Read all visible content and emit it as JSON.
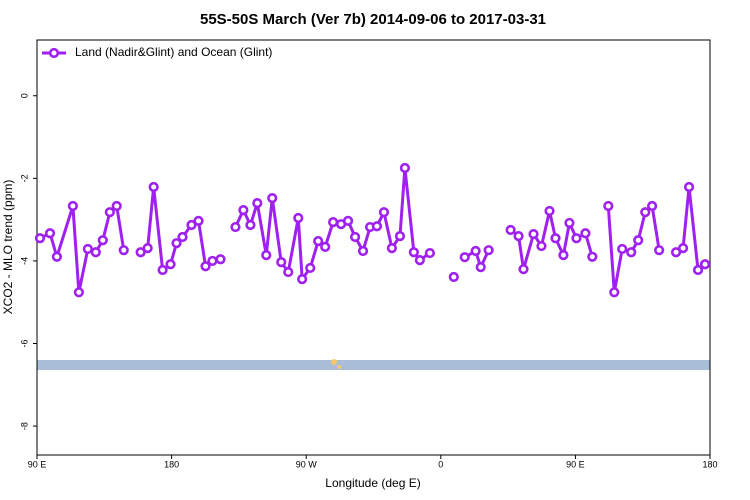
{
  "chart_data": {
    "type": "line",
    "title": "55S-50S March (Ver 7b)   2014-09-06 to 2017-03-31",
    "x_label": "Longitude (deg E)",
    "y_label": "XCO2 - MLO trend (ppm)",
    "xlim": [
      90,
      540
    ],
    "xticks": [
      {
        "value": 90,
        "label": "90 E"
      },
      180,
      {
        "value": 270,
        "label": "90 W"
      },
      {
        "value": 360,
        "label": "0"
      },
      {
        "value": 450,
        "label": "90 E"
      },
      {
        "value": 540,
        "label": "180"
      }
    ],
    "ylim": [
      -8.7,
      1.35
    ],
    "yticks": [
      0,
      -2,
      -4,
      -6,
      -8
    ],
    "legend": "top-left",
    "x": [
      92,
      98.7,
      103.3,
      114,
      118,
      124,
      129.3,
      134,
      138.7,
      143.3,
      148,
      null,
      159.3,
      164,
      168,
      174,
      179.3,
      183.3,
      187.3,
      193.3,
      198,
      202.7,
      207.3,
      212.7,
      null,
      222.7,
      228,
      232.7,
      237.3,
      243.3,
      247.3,
      253.3,
      258,
      264.7,
      267.3,
      272.7,
      278,
      282.7,
      288,
      293.3,
      298,
      302.7,
      308,
      312.7,
      317.3,
      322,
      327.3,
      332.7,
      336,
      342,
      346,
      352.7,
      null,
      368.7,
      null,
      376,
      383.3,
      386.7,
      392,
      null,
      406.7,
      412,
      415.3,
      422,
      427.3,
      432.7,
      436.7,
      442,
      446,
      450.7,
      456.7,
      461.3,
      null,
      472,
      476,
      481.3,
      487.3,
      492,
      496.7,
      501.3,
      506,
      null,
      517.3,
      522,
      526,
      532,
      536.7
    ],
    "series": [
      {
        "name": "Land (Nadir&Glint) and Ocean (Glint)",
        "color": "#a020f0",
        "values": [
          -3.45,
          -3.33,
          -3.9,
          -2.67,
          -4.76,
          -3.71,
          -3.79,
          -3.5,
          -2.82,
          -2.67,
          -3.74,
          null,
          -3.79,
          -3.69,
          -2.21,
          -4.22,
          -4.08,
          -3.57,
          -3.42,
          -3.13,
          -3.03,
          -4.13,
          -4.0,
          -3.96,
          null,
          -3.18,
          -2.77,
          -3.13,
          -2.6,
          -3.86,
          -2.48,
          -4.03,
          -4.27,
          -2.96,
          -4.44,
          -4.17,
          -3.52,
          -3.66,
          -3.06,
          -3.11,
          -3.03,
          -3.42,
          -3.76,
          -3.18,
          -3.16,
          -2.82,
          -3.69,
          -3.4,
          -1.75,
          -3.79,
          -3.98,
          -3.81,
          null,
          -4.39,
          null,
          -3.91,
          -3.76,
          -4.15,
          -3.74,
          null,
          -3.25,
          -3.4,
          -4.2,
          -3.35,
          -3.64,
          -2.79,
          -3.45,
          -3.86,
          -3.08,
          -3.45,
          -3.33,
          -3.9,
          null,
          -2.67,
          -4.76,
          -3.71,
          -3.79,
          -3.5,
          -2.82,
          -2.67,
          -3.74,
          null,
          -3.79,
          -3.69,
          -2.21,
          -4.22,
          -4.08
        ]
      }
    ]
  }
}
